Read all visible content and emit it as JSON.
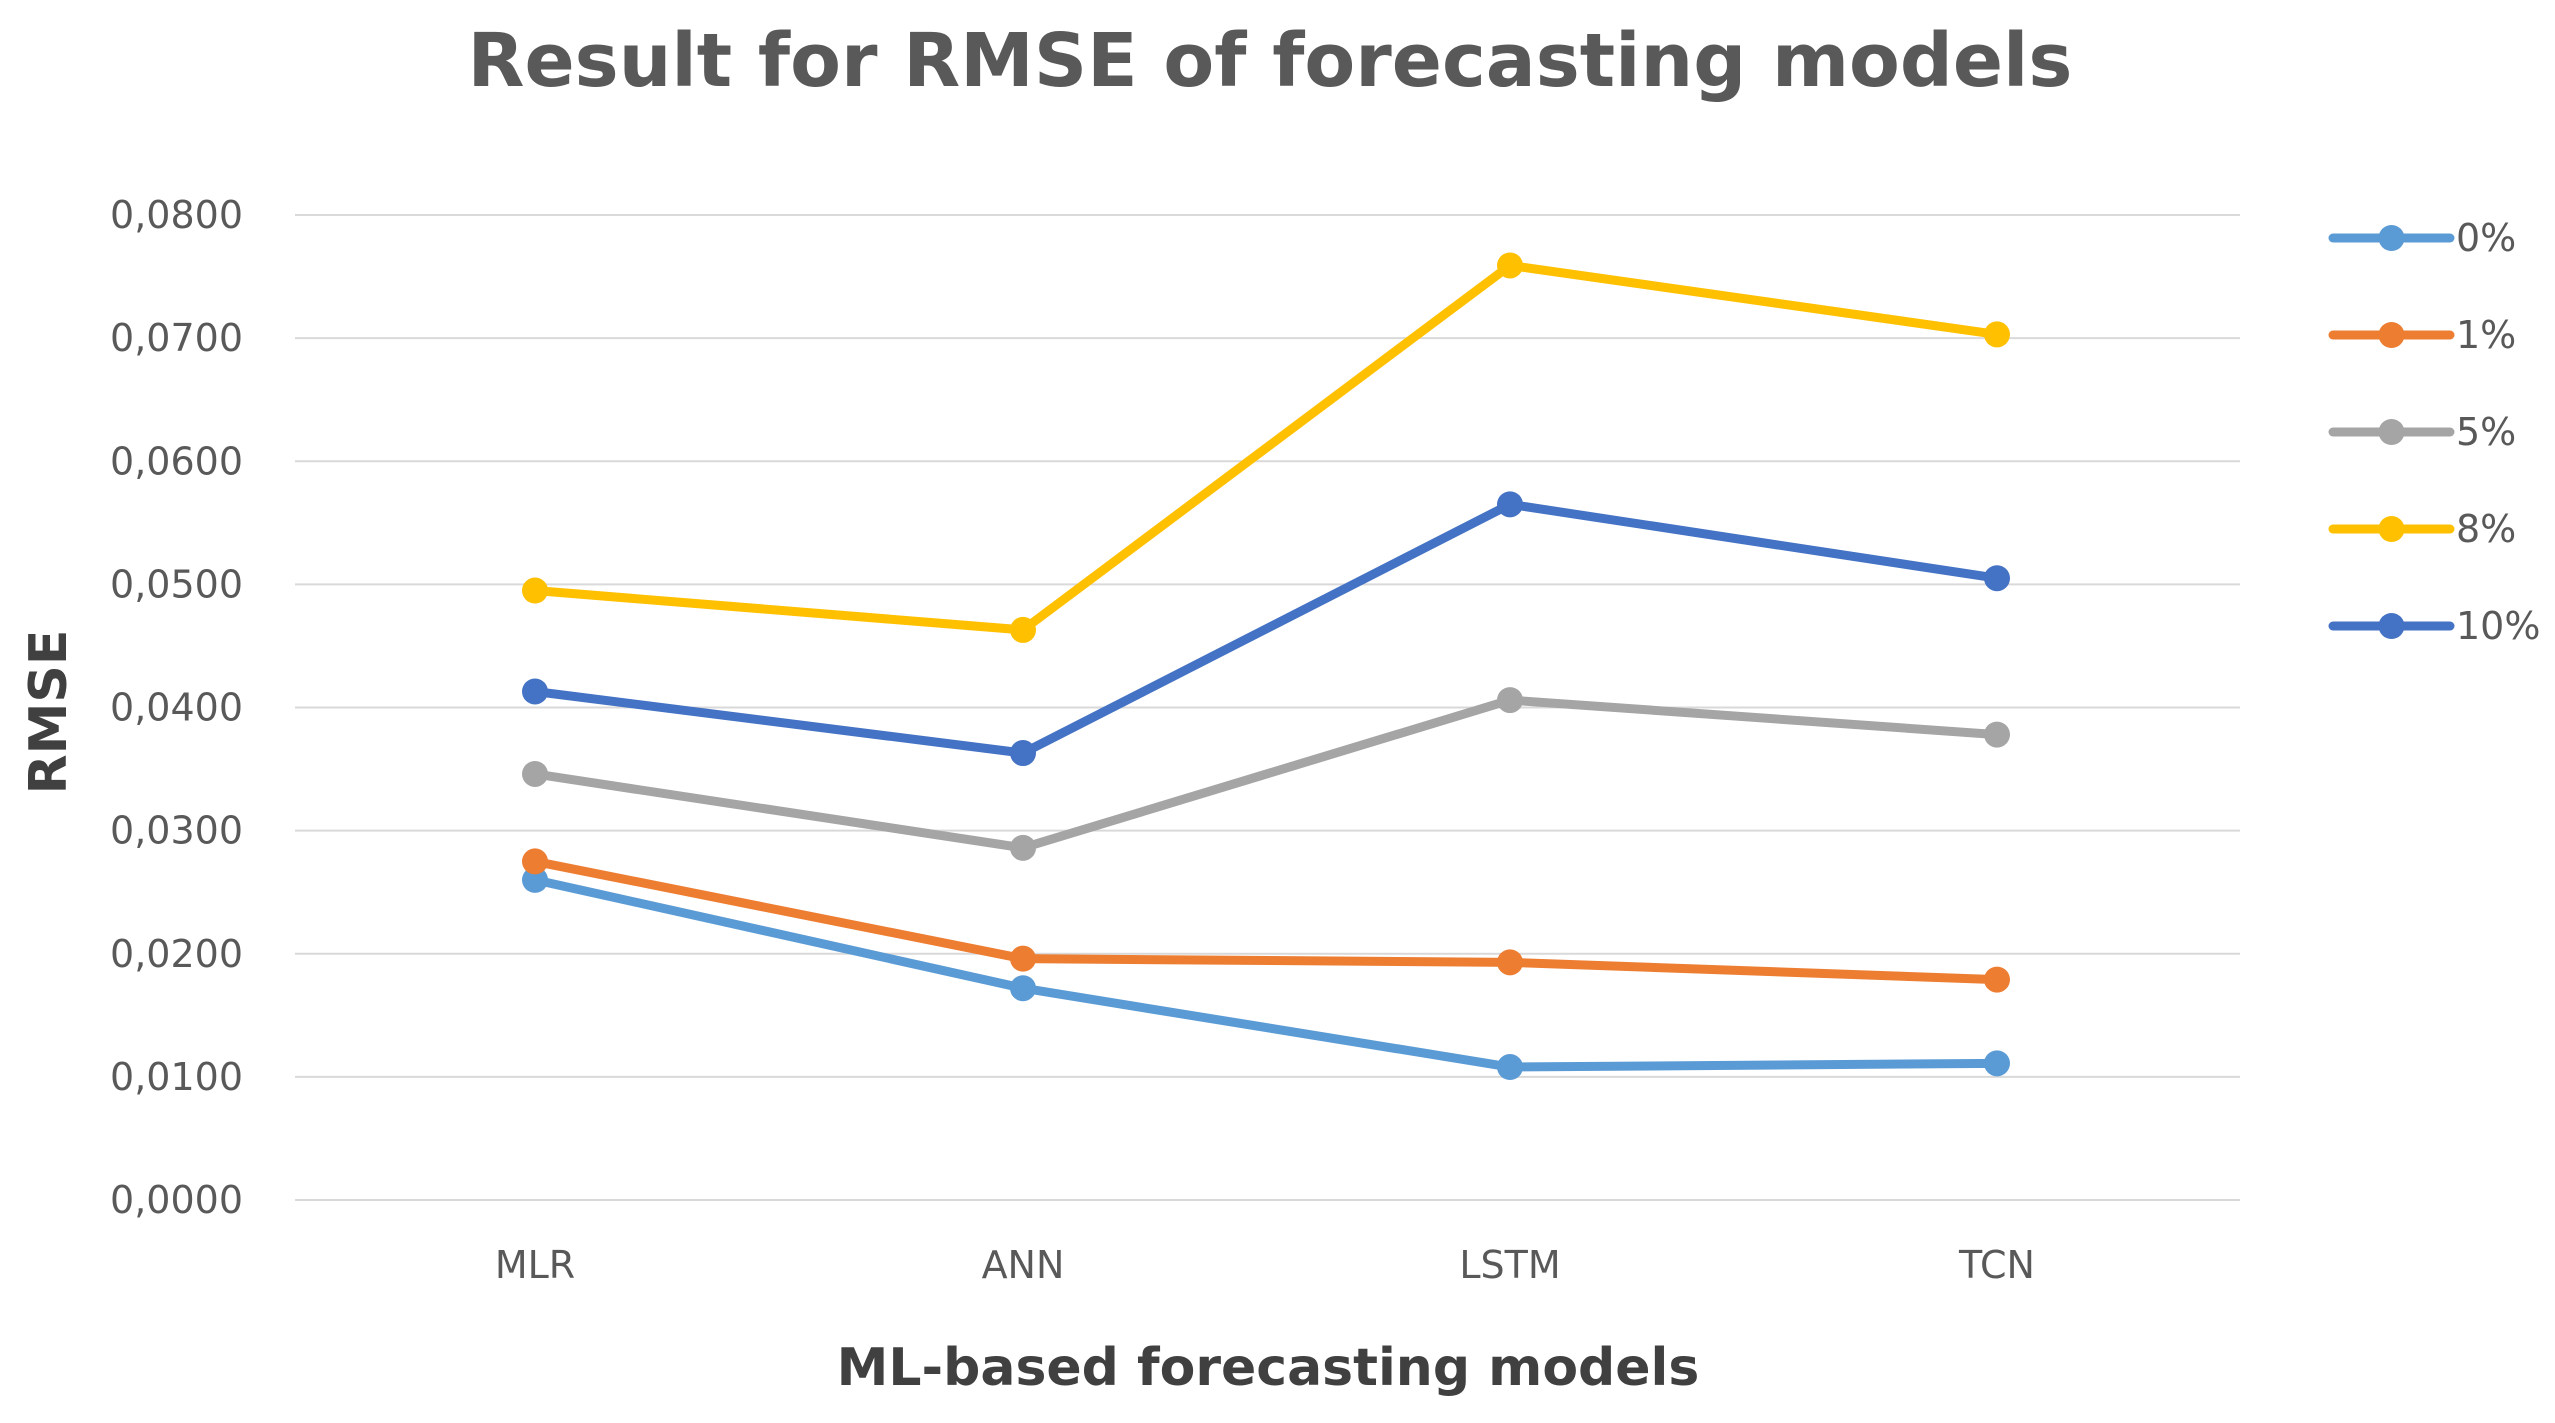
{
  "chart_data": {
    "type": "line",
    "title": "Result for RMSE of forecasting models",
    "xlabel": "ML-based forecasting models",
    "ylabel": "RMSE",
    "categories": [
      "MLR",
      "ANN",
      "LSTM",
      "TCN"
    ],
    "ylim": [
      0,
      0.08
    ],
    "yticks": [
      0,
      0.01,
      0.02,
      0.03,
      0.04,
      0.05,
      0.06,
      0.07,
      0.08
    ],
    "ytick_labels": [
      "0,0000",
      "0,0100",
      "0,0200",
      "0,0300",
      "0,0400",
      "0,0500",
      "0,0600",
      "0,0700",
      "0,0800"
    ],
    "grid": true,
    "legend_position": "right",
    "series": [
      {
        "name": "0%",
        "color": "#5b9bd5",
        "values": [
          0.026,
          0.0172,
          0.0108,
          0.0111
        ]
      },
      {
        "name": "1%",
        "color": "#ed7d31",
        "values": [
          0.0275,
          0.0196,
          0.0193,
          0.0179
        ]
      },
      {
        "name": "5%",
        "color": "#a5a5a5",
        "values": [
          0.0346,
          0.0286,
          0.0406,
          0.0378
        ]
      },
      {
        "name": "8%",
        "color": "#ffc000",
        "values": [
          0.0495,
          0.0463,
          0.0759,
          0.0703
        ]
      },
      {
        "name": "10%",
        "color": "#4472c4",
        "values": [
          0.0413,
          0.0363,
          0.0565,
          0.0505
        ]
      }
    ]
  }
}
